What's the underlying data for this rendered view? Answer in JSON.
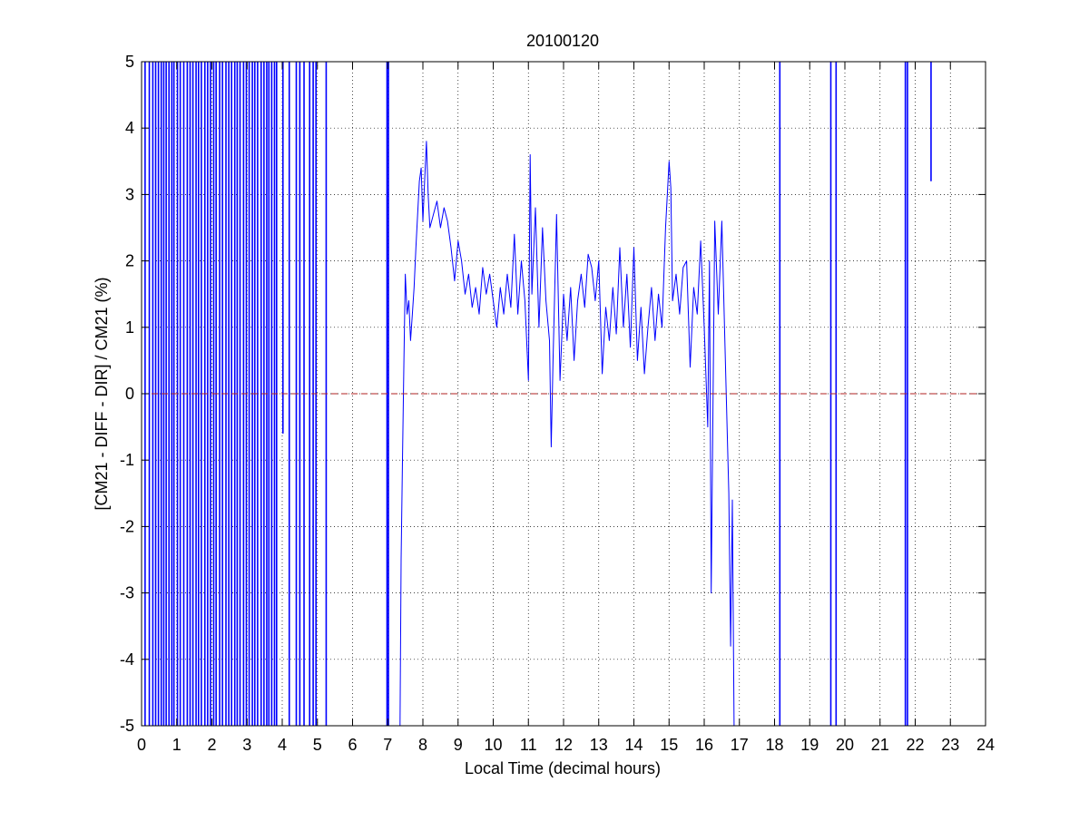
{
  "chart_data": {
    "type": "line",
    "title": "20100120",
    "xlabel": "Local Time (decimal hours)",
    "ylabel": "[CM21 - DIFF - DIR] / CM21 (%)",
    "xlim": [
      0,
      24
    ],
    "ylim": [
      -5,
      5
    ],
    "x_ticks": [
      0,
      1,
      2,
      3,
      4,
      5,
      6,
      7,
      8,
      9,
      10,
      11,
      12,
      13,
      14,
      15,
      16,
      17,
      18,
      19,
      20,
      21,
      22,
      23,
      24
    ],
    "y_ticks": [
      -5,
      -4,
      -3,
      -2,
      -1,
      0,
      1,
      2,
      3,
      4,
      5
    ],
    "grid": true,
    "colors": {
      "series": "#0000ff",
      "reference": "#b22222",
      "axes": "#000000",
      "grid": "#000000"
    },
    "reference_line": {
      "y": 0,
      "style": "dashed"
    },
    "series": [
      {
        "points": [
          [
            7.35,
            -5
          ],
          [
            7.38,
            -2.5
          ],
          [
            7.42,
            -1.0
          ],
          [
            7.46,
            0.5
          ],
          [
            7.5,
            1.8
          ],
          [
            7.55,
            1.2
          ],
          [
            7.6,
            1.4
          ],
          [
            7.65,
            0.8
          ],
          [
            7.7,
            1.2
          ],
          [
            7.75,
            1.6
          ],
          [
            7.8,
            2.2
          ],
          [
            7.85,
            2.7
          ],
          [
            7.9,
            3.2
          ],
          [
            7.95,
            3.4
          ],
          [
            8.0,
            2.6
          ],
          [
            8.05,
            3.2
          ],
          [
            8.1,
            3.8
          ],
          [
            8.15,
            3.0
          ],
          [
            8.2,
            2.5
          ],
          [
            8.3,
            2.7
          ],
          [
            8.4,
            2.9
          ],
          [
            8.5,
            2.5
          ],
          [
            8.6,
            2.8
          ],
          [
            8.7,
            2.6
          ],
          [
            8.8,
            2.2
          ],
          [
            8.9,
            1.7
          ],
          [
            9.0,
            2.3
          ],
          [
            9.1,
            2.0
          ],
          [
            9.2,
            1.5
          ],
          [
            9.3,
            1.8
          ],
          [
            9.4,
            1.3
          ],
          [
            9.5,
            1.6
          ],
          [
            9.6,
            1.2
          ],
          [
            9.7,
            1.9
          ],
          [
            9.8,
            1.5
          ],
          [
            9.9,
            1.8
          ],
          [
            10.0,
            1.4
          ],
          [
            10.1,
            1.0
          ],
          [
            10.2,
            1.6
          ],
          [
            10.3,
            1.2
          ],
          [
            10.4,
            1.8
          ],
          [
            10.5,
            1.3
          ],
          [
            10.6,
            2.4
          ],
          [
            10.7,
            1.2
          ],
          [
            10.8,
            2.0
          ],
          [
            10.9,
            1.4
          ],
          [
            11.0,
            0.2
          ],
          [
            11.05,
            3.6
          ],
          [
            11.1,
            1.5
          ],
          [
            11.2,
            2.8
          ],
          [
            11.3,
            1.0
          ],
          [
            11.4,
            2.5
          ],
          [
            11.5,
            1.4
          ],
          [
            11.6,
            0.8
          ],
          [
            11.65,
            -0.8
          ],
          [
            11.7,
            0.5
          ],
          [
            11.8,
            2.7
          ],
          [
            11.9,
            0.2
          ],
          [
            12.0,
            1.5
          ],
          [
            12.1,
            0.8
          ],
          [
            12.2,
            1.6
          ],
          [
            12.3,
            0.5
          ],
          [
            12.4,
            1.4
          ],
          [
            12.5,
            1.8
          ],
          [
            12.6,
            1.3
          ],
          [
            12.7,
            2.1
          ],
          [
            12.8,
            1.9
          ],
          [
            12.9,
            1.4
          ],
          [
            13.0,
            2.0
          ],
          [
            13.1,
            0.3
          ],
          [
            13.2,
            1.3
          ],
          [
            13.3,
            0.8
          ],
          [
            13.4,
            1.6
          ],
          [
            13.5,
            0.9
          ],
          [
            13.6,
            2.2
          ],
          [
            13.7,
            1.0
          ],
          [
            13.8,
            1.8
          ],
          [
            13.9,
            0.7
          ],
          [
            14.0,
            2.2
          ],
          [
            14.1,
            0.5
          ],
          [
            14.2,
            1.3
          ],
          [
            14.3,
            0.3
          ],
          [
            14.4,
            1.0
          ],
          [
            14.5,
            1.6
          ],
          [
            14.6,
            0.8
          ],
          [
            14.7,
            1.5
          ],
          [
            14.8,
            1.0
          ],
          [
            14.9,
            2.5
          ],
          [
            15.0,
            3.5
          ],
          [
            15.05,
            3.1
          ],
          [
            15.1,
            1.4
          ],
          [
            15.2,
            1.8
          ],
          [
            15.3,
            1.2
          ],
          [
            15.4,
            1.9
          ],
          [
            15.5,
            2.0
          ],
          [
            15.6,
            0.4
          ],
          [
            15.7,
            1.6
          ],
          [
            15.8,
            1.2
          ],
          [
            15.9,
            2.3
          ],
          [
            16.0,
            1.0
          ],
          [
            16.1,
            -0.5
          ],
          [
            16.15,
            2.0
          ],
          [
            16.2,
            -3.0
          ],
          [
            16.3,
            2.6
          ],
          [
            16.4,
            1.2
          ],
          [
            16.5,
            2.6
          ],
          [
            16.6,
            0.5
          ],
          [
            16.7,
            -1.5
          ],
          [
            16.75,
            -3.8
          ],
          [
            16.8,
            -1.6
          ],
          [
            16.85,
            -5
          ]
        ]
      }
    ],
    "spikes": [
      [
        0.1,
        -5,
        5
      ],
      [
        0.22,
        -5,
        5
      ],
      [
        0.32,
        -5,
        5
      ],
      [
        0.4,
        -5,
        5
      ],
      [
        0.48,
        -5,
        5
      ],
      [
        0.56,
        -5,
        5
      ],
      [
        0.63,
        -5,
        5
      ],
      [
        0.7,
        -5,
        5
      ],
      [
        0.78,
        -5,
        5
      ],
      [
        0.86,
        -5,
        5
      ],
      [
        0.92,
        -5,
        5
      ],
      [
        1.02,
        -5,
        5
      ],
      [
        1.1,
        -5,
        5
      ],
      [
        1.2,
        -5,
        5
      ],
      [
        1.3,
        -5,
        5
      ],
      [
        1.38,
        -5,
        5
      ],
      [
        1.46,
        -5,
        5
      ],
      [
        1.55,
        -5,
        5
      ],
      [
        1.62,
        -5,
        5
      ],
      [
        1.7,
        -5,
        5
      ],
      [
        1.8,
        -5,
        5
      ],
      [
        1.88,
        -5,
        5
      ],
      [
        1.96,
        -5,
        5
      ],
      [
        2.05,
        -5,
        5
      ],
      [
        2.12,
        -5,
        5
      ],
      [
        2.22,
        -5,
        5
      ],
      [
        2.3,
        -5,
        5
      ],
      [
        2.4,
        -5,
        5
      ],
      [
        2.48,
        -5,
        5
      ],
      [
        2.56,
        -5,
        5
      ],
      [
        2.65,
        -5,
        5
      ],
      [
        2.72,
        -5,
        5
      ],
      [
        2.8,
        -5,
        5
      ],
      [
        2.9,
        -5,
        5
      ],
      [
        2.98,
        -5,
        5
      ],
      [
        3.06,
        -5,
        5
      ],
      [
        3.15,
        -5,
        5
      ],
      [
        3.22,
        -5,
        5
      ],
      [
        3.3,
        -5,
        5
      ],
      [
        3.4,
        -5,
        5
      ],
      [
        3.48,
        -5,
        5
      ],
      [
        3.56,
        -5,
        5
      ],
      [
        3.62,
        -5,
        5
      ],
      [
        3.7,
        -5,
        5
      ],
      [
        3.78,
        -5,
        5
      ],
      [
        3.84,
        -5,
        5
      ],
      [
        4.02,
        -0.6,
        5
      ],
      [
        4.2,
        -5,
        5
      ],
      [
        4.4,
        -5,
        5
      ],
      [
        4.5,
        -5,
        5
      ],
      [
        4.62,
        -5,
        5
      ],
      [
        4.78,
        -5,
        5
      ],
      [
        4.88,
        -5,
        5
      ],
      [
        4.96,
        -5,
        5
      ],
      [
        5.25,
        -5,
        5
      ],
      [
        6.98,
        -5,
        5
      ],
      [
        7.02,
        -5,
        5
      ],
      [
        18.15,
        -5,
        5
      ],
      [
        19.6,
        -5,
        5
      ],
      [
        19.75,
        -5,
        5
      ],
      [
        21.72,
        -5,
        5
      ],
      [
        21.78,
        -5,
        5
      ],
      [
        22.45,
        3.2,
        5
      ]
    ]
  }
}
